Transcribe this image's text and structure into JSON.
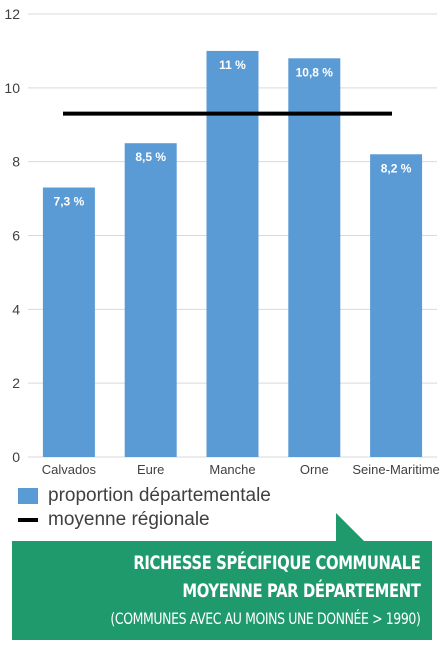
{
  "chart_data": {
    "type": "bar",
    "categories": [
      "Calvados",
      "Eure",
      "Manche",
      "Orne",
      "Seine-Maritime"
    ],
    "series": [
      {
        "name": "proportion départementale",
        "values": [
          7.3,
          8.5,
          11,
          10.8,
          8.2
        ],
        "labels": [
          "7,3 %",
          "8,5 %",
          "11 %",
          "10,8 %",
          "8,2 %"
        ]
      }
    ],
    "reference_line": {
      "name": "moyenne régionale",
      "value": 9.3
    },
    "ylim": [
      0,
      12
    ],
    "yticks": [
      0,
      2,
      4,
      6,
      8,
      10,
      12
    ],
    "grid": true,
    "legend_position": "bottom-left",
    "title": "",
    "xlabel": "",
    "ylabel": ""
  },
  "colors": {
    "bar": "#5b9bd5",
    "reference": "#000000",
    "banner": "#1f9a6d",
    "grid": "#d9d9d9"
  },
  "legend": {
    "bar_label": "proportion départementale",
    "line_label": "moyenne régionale"
  },
  "banner": {
    "line1": "Richesse spécifique communale",
    "line2": "moyenne par département",
    "line3": "(communes avec au moins une donnée > 1990)"
  }
}
